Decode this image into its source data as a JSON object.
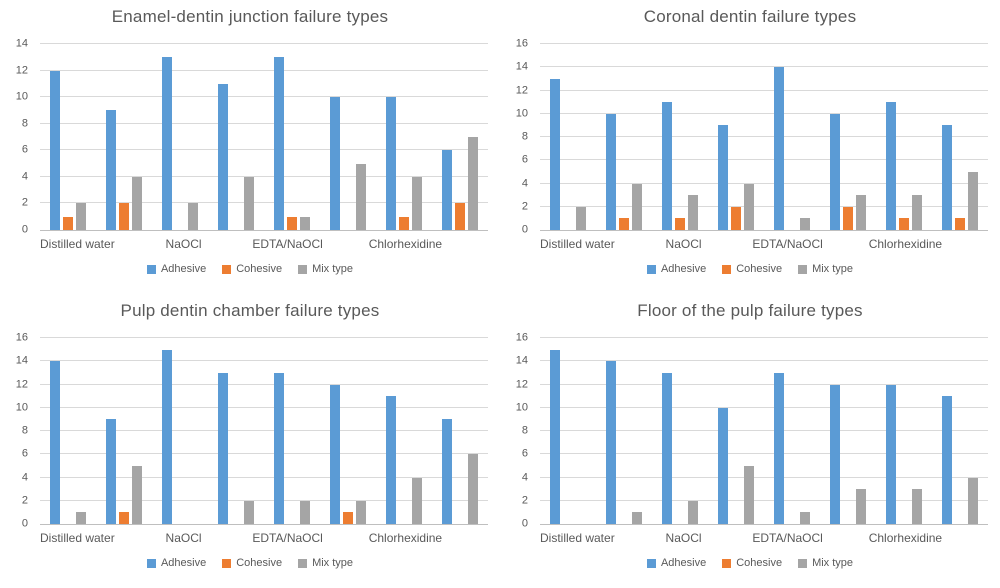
{
  "palette": {
    "adhesive": "#5B9BD5",
    "cohesive": "#ED7D31",
    "mix_type": "#A5A5A5",
    "gridline": "#D9D9D9",
    "axis_line": "#BFBFBF",
    "text": "#595959",
    "background": "#FFFFFF"
  },
  "chart_data": [
    {
      "type": "bar",
      "title": "Enamel-dentin junction failure types",
      "categories": [
        "Distilled water",
        "NaOCl",
        "EDTA/NaOCl",
        "Chlorhexidine"
      ],
      "groups_per_category": 2,
      "series": [
        {
          "name": "Adhesive",
          "color": "#5B9BD5",
          "values": [
            12,
            9,
            13,
            11,
            13,
            10,
            10,
            6
          ]
        },
        {
          "name": "Cohesive",
          "color": "#ED7D31",
          "values": [
            1,
            2,
            0,
            0,
            1,
            0,
            1,
            2
          ]
        },
        {
          "name": "Mix type",
          "color": "#A5A5A5",
          "values": [
            2,
            4,
            2,
            4,
            1,
            5,
            4,
            7
          ]
        }
      ],
      "ylim": [
        0,
        14
      ],
      "ytick_step": 2,
      "grid": true,
      "legend_position": "bottom"
    },
    {
      "type": "bar",
      "title": "Coronal dentin failure types",
      "categories": [
        "Distilled water",
        "NaOCl",
        "EDTA/NaOCl",
        "Chlorhexidine"
      ],
      "groups_per_category": 2,
      "series": [
        {
          "name": "Adhesive",
          "color": "#5B9BD5",
          "values": [
            13,
            10,
            11,
            9,
            14,
            10,
            11,
            9
          ]
        },
        {
          "name": "Cohesive",
          "color": "#ED7D31",
          "values": [
            0,
            1,
            1,
            2,
            0,
            2,
            1,
            1
          ]
        },
        {
          "name": "Mix type",
          "color": "#A5A5A5",
          "values": [
            2,
            4,
            3,
            4,
            1,
            3,
            3,
            5
          ]
        }
      ],
      "ylim": [
        0,
        16
      ],
      "ytick_step": 2,
      "grid": true,
      "legend_position": "bottom"
    },
    {
      "type": "bar",
      "title": "Pulp dentin chamber failure types",
      "categories": [
        "Distilled water",
        "NaOCl",
        "EDTA/NaOCl",
        "Chlorhexidine"
      ],
      "groups_per_category": 2,
      "series": [
        {
          "name": "Adhesive",
          "color": "#5B9BD5",
          "values": [
            14,
            9,
            15,
            13,
            13,
            12,
            11,
            9
          ]
        },
        {
          "name": "Cohesive",
          "color": "#ED7D31",
          "values": [
            0,
            1,
            0,
            0,
            0,
            1,
            0,
            0
          ]
        },
        {
          "name": "Mix type",
          "color": "#A5A5A5",
          "values": [
            1,
            5,
            0,
            2,
            2,
            2,
            4,
            6
          ]
        }
      ],
      "ylim": [
        0,
        16
      ],
      "ytick_step": 2,
      "grid": true,
      "legend_position": "bottom"
    },
    {
      "type": "bar",
      "title": "Floor of the pulp failure types",
      "categories": [
        "Distilled water",
        "NaOCl",
        "EDTA/NaOCl",
        "Chlorhexidine"
      ],
      "groups_per_category": 2,
      "series": [
        {
          "name": "Adhesive",
          "color": "#5B9BD5",
          "values": [
            15,
            14,
            13,
            10,
            13,
            12,
            12,
            11
          ]
        },
        {
          "name": "Cohesive",
          "color": "#ED7D31",
          "values": [
            0,
            0,
            0,
            0,
            0,
            0,
            0,
            0
          ]
        },
        {
          "name": "Mix type",
          "color": "#A5A5A5",
          "values": [
            0,
            1,
            2,
            5,
            1,
            3,
            3,
            4
          ]
        }
      ],
      "ylim": [
        0,
        16
      ],
      "ytick_step": 2,
      "grid": true,
      "legend_position": "bottom"
    }
  ]
}
